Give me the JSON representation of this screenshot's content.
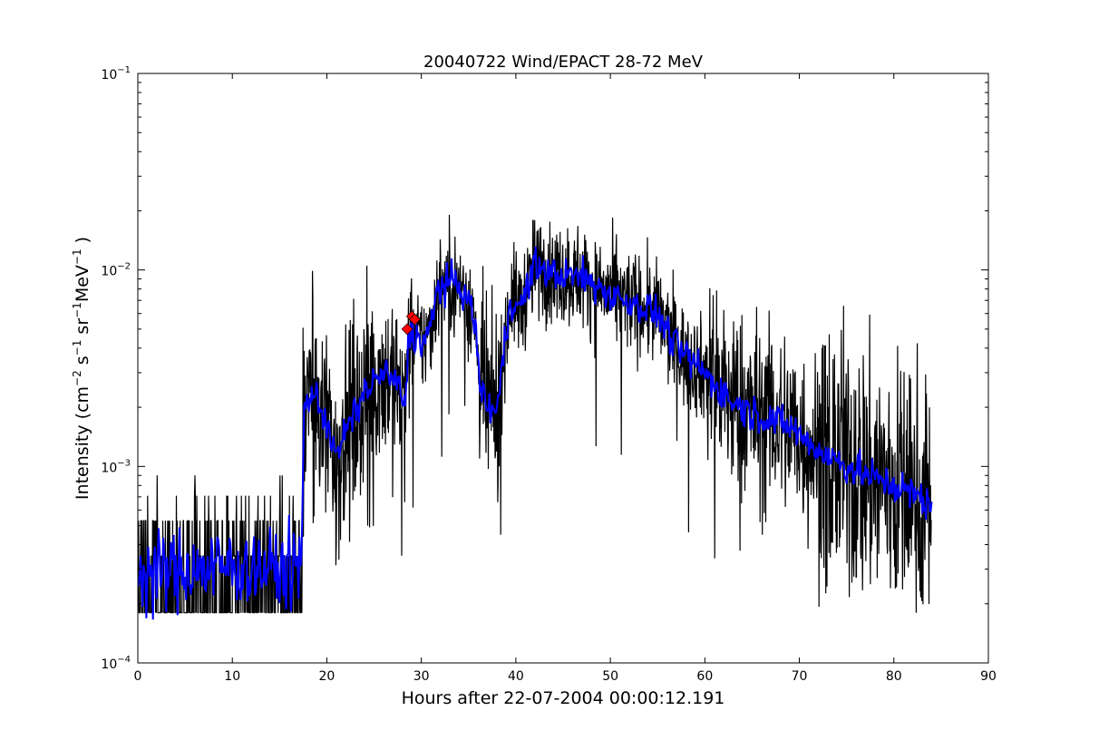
{
  "chart_data": {
    "type": "line",
    "title": "20040722 Wind/EPACT 28-72 MeV",
    "xlabel": "Hours after 22-07-2004 00:00:12.191",
    "ylabel": {
      "text": "Intensity (cm",
      "exp1": "−2",
      "mid1": " s",
      "exp2": "−1",
      "mid2": " sr",
      "exp3": "−1",
      "mid3": "MeV",
      "exp4": "−1",
      "end": " )"
    },
    "xlim": [
      0,
      90
    ],
    "ylim": [
      0.0001,
      0.1
    ],
    "yscale": "log",
    "x_ticks": [
      "0",
      "10",
      "20",
      "30",
      "40",
      "50",
      "60",
      "70",
      "80",
      "90"
    ],
    "y_ticks": [
      {
        "base": "10",
        "exp": "−4"
      },
      {
        "base": "10",
        "exp": "−3"
      },
      {
        "base": "10",
        "exp": "−2"
      },
      {
        "base": "10",
        "exp": "−1"
      }
    ],
    "grid": false,
    "legend": "none",
    "series": [
      {
        "role": "raw",
        "color": "#000000",
        "profile": [
          [
            0.0,
            0.00028
          ],
          [
            5.0,
            0.00028
          ],
          [
            10.0,
            0.00027
          ],
          [
            15.0,
            0.00028
          ],
          [
            17.3,
            0.00028
          ],
          [
            17.6,
            0.002
          ],
          [
            18.5,
            0.0024
          ],
          [
            20.0,
            0.0017
          ],
          [
            21.0,
            0.0011
          ],
          [
            22.0,
            0.0015
          ],
          [
            24.0,
            0.0024
          ],
          [
            26.0,
            0.003
          ],
          [
            27.5,
            0.0026
          ],
          [
            28.3,
            0.002
          ],
          [
            28.7,
            0.005
          ],
          [
            30.0,
            0.0042
          ],
          [
            31.0,
            0.005
          ],
          [
            31.7,
            0.008
          ],
          [
            33.0,
            0.0088
          ],
          [
            34.5,
            0.0078
          ],
          [
            35.5,
            0.006
          ],
          [
            36.3,
            0.0025
          ],
          [
            37.0,
            0.002
          ],
          [
            38.0,
            0.0019
          ],
          [
            39.0,
            0.005
          ],
          [
            39.5,
            0.0072
          ],
          [
            40.5,
            0.0064
          ],
          [
            42.0,
            0.0105
          ],
          [
            44.0,
            0.0095
          ],
          [
            47.0,
            0.0092
          ],
          [
            50.0,
            0.0075
          ],
          [
            53.0,
            0.0066
          ],
          [
            55.0,
            0.006
          ],
          [
            57.0,
            0.004
          ],
          [
            60.0,
            0.003
          ],
          [
            63.0,
            0.0021
          ],
          [
            66.0,
            0.0018
          ],
          [
            69.0,
            0.0016
          ],
          [
            72.0,
            0.0012
          ],
          [
            76.0,
            0.00095
          ],
          [
            80.0,
            0.0008
          ],
          [
            84.0,
            0.00065
          ]
        ]
      },
      {
        "role": "smoothed",
        "color": "#0000ff",
        "profile": [
          [
            0.0,
            0.00028
          ],
          [
            5.0,
            0.0003
          ],
          [
            10.0,
            0.00031
          ],
          [
            15.0,
            0.0003
          ],
          [
            17.3,
            0.0003
          ],
          [
            17.6,
            0.002
          ],
          [
            18.5,
            0.0024
          ],
          [
            20.0,
            0.0017
          ],
          [
            21.0,
            0.0011
          ],
          [
            22.0,
            0.0015
          ],
          [
            24.0,
            0.0024
          ],
          [
            26.0,
            0.003
          ],
          [
            27.5,
            0.0026
          ],
          [
            28.3,
            0.002
          ],
          [
            28.7,
            0.005
          ],
          [
            30.0,
            0.0042
          ],
          [
            31.0,
            0.005
          ],
          [
            31.7,
            0.008
          ],
          [
            33.0,
            0.0088
          ],
          [
            34.5,
            0.0078
          ],
          [
            35.5,
            0.006
          ],
          [
            36.3,
            0.0025
          ],
          [
            37.0,
            0.002
          ],
          [
            38.0,
            0.0019
          ],
          [
            39.0,
            0.005
          ],
          [
            39.5,
            0.0072
          ],
          [
            40.5,
            0.0064
          ],
          [
            42.0,
            0.0105
          ],
          [
            44.0,
            0.0095
          ],
          [
            47.0,
            0.0092
          ],
          [
            50.0,
            0.0075
          ],
          [
            53.0,
            0.0066
          ],
          [
            55.0,
            0.006
          ],
          [
            57.0,
            0.004
          ],
          [
            60.0,
            0.003
          ],
          [
            63.0,
            0.0021
          ],
          [
            66.0,
            0.0018
          ],
          [
            69.0,
            0.0016
          ],
          [
            72.0,
            0.0012
          ],
          [
            76.0,
            0.00095
          ],
          [
            80.0,
            0.0008
          ],
          [
            84.0,
            0.00065
          ]
        ]
      }
    ],
    "markers": {
      "color": "#ff0000",
      "shape": "diamond",
      "points": [
        [
          28.5,
          0.005
        ],
        [
          29.0,
          0.0058
        ],
        [
          29.3,
          0.0056
        ]
      ]
    }
  }
}
